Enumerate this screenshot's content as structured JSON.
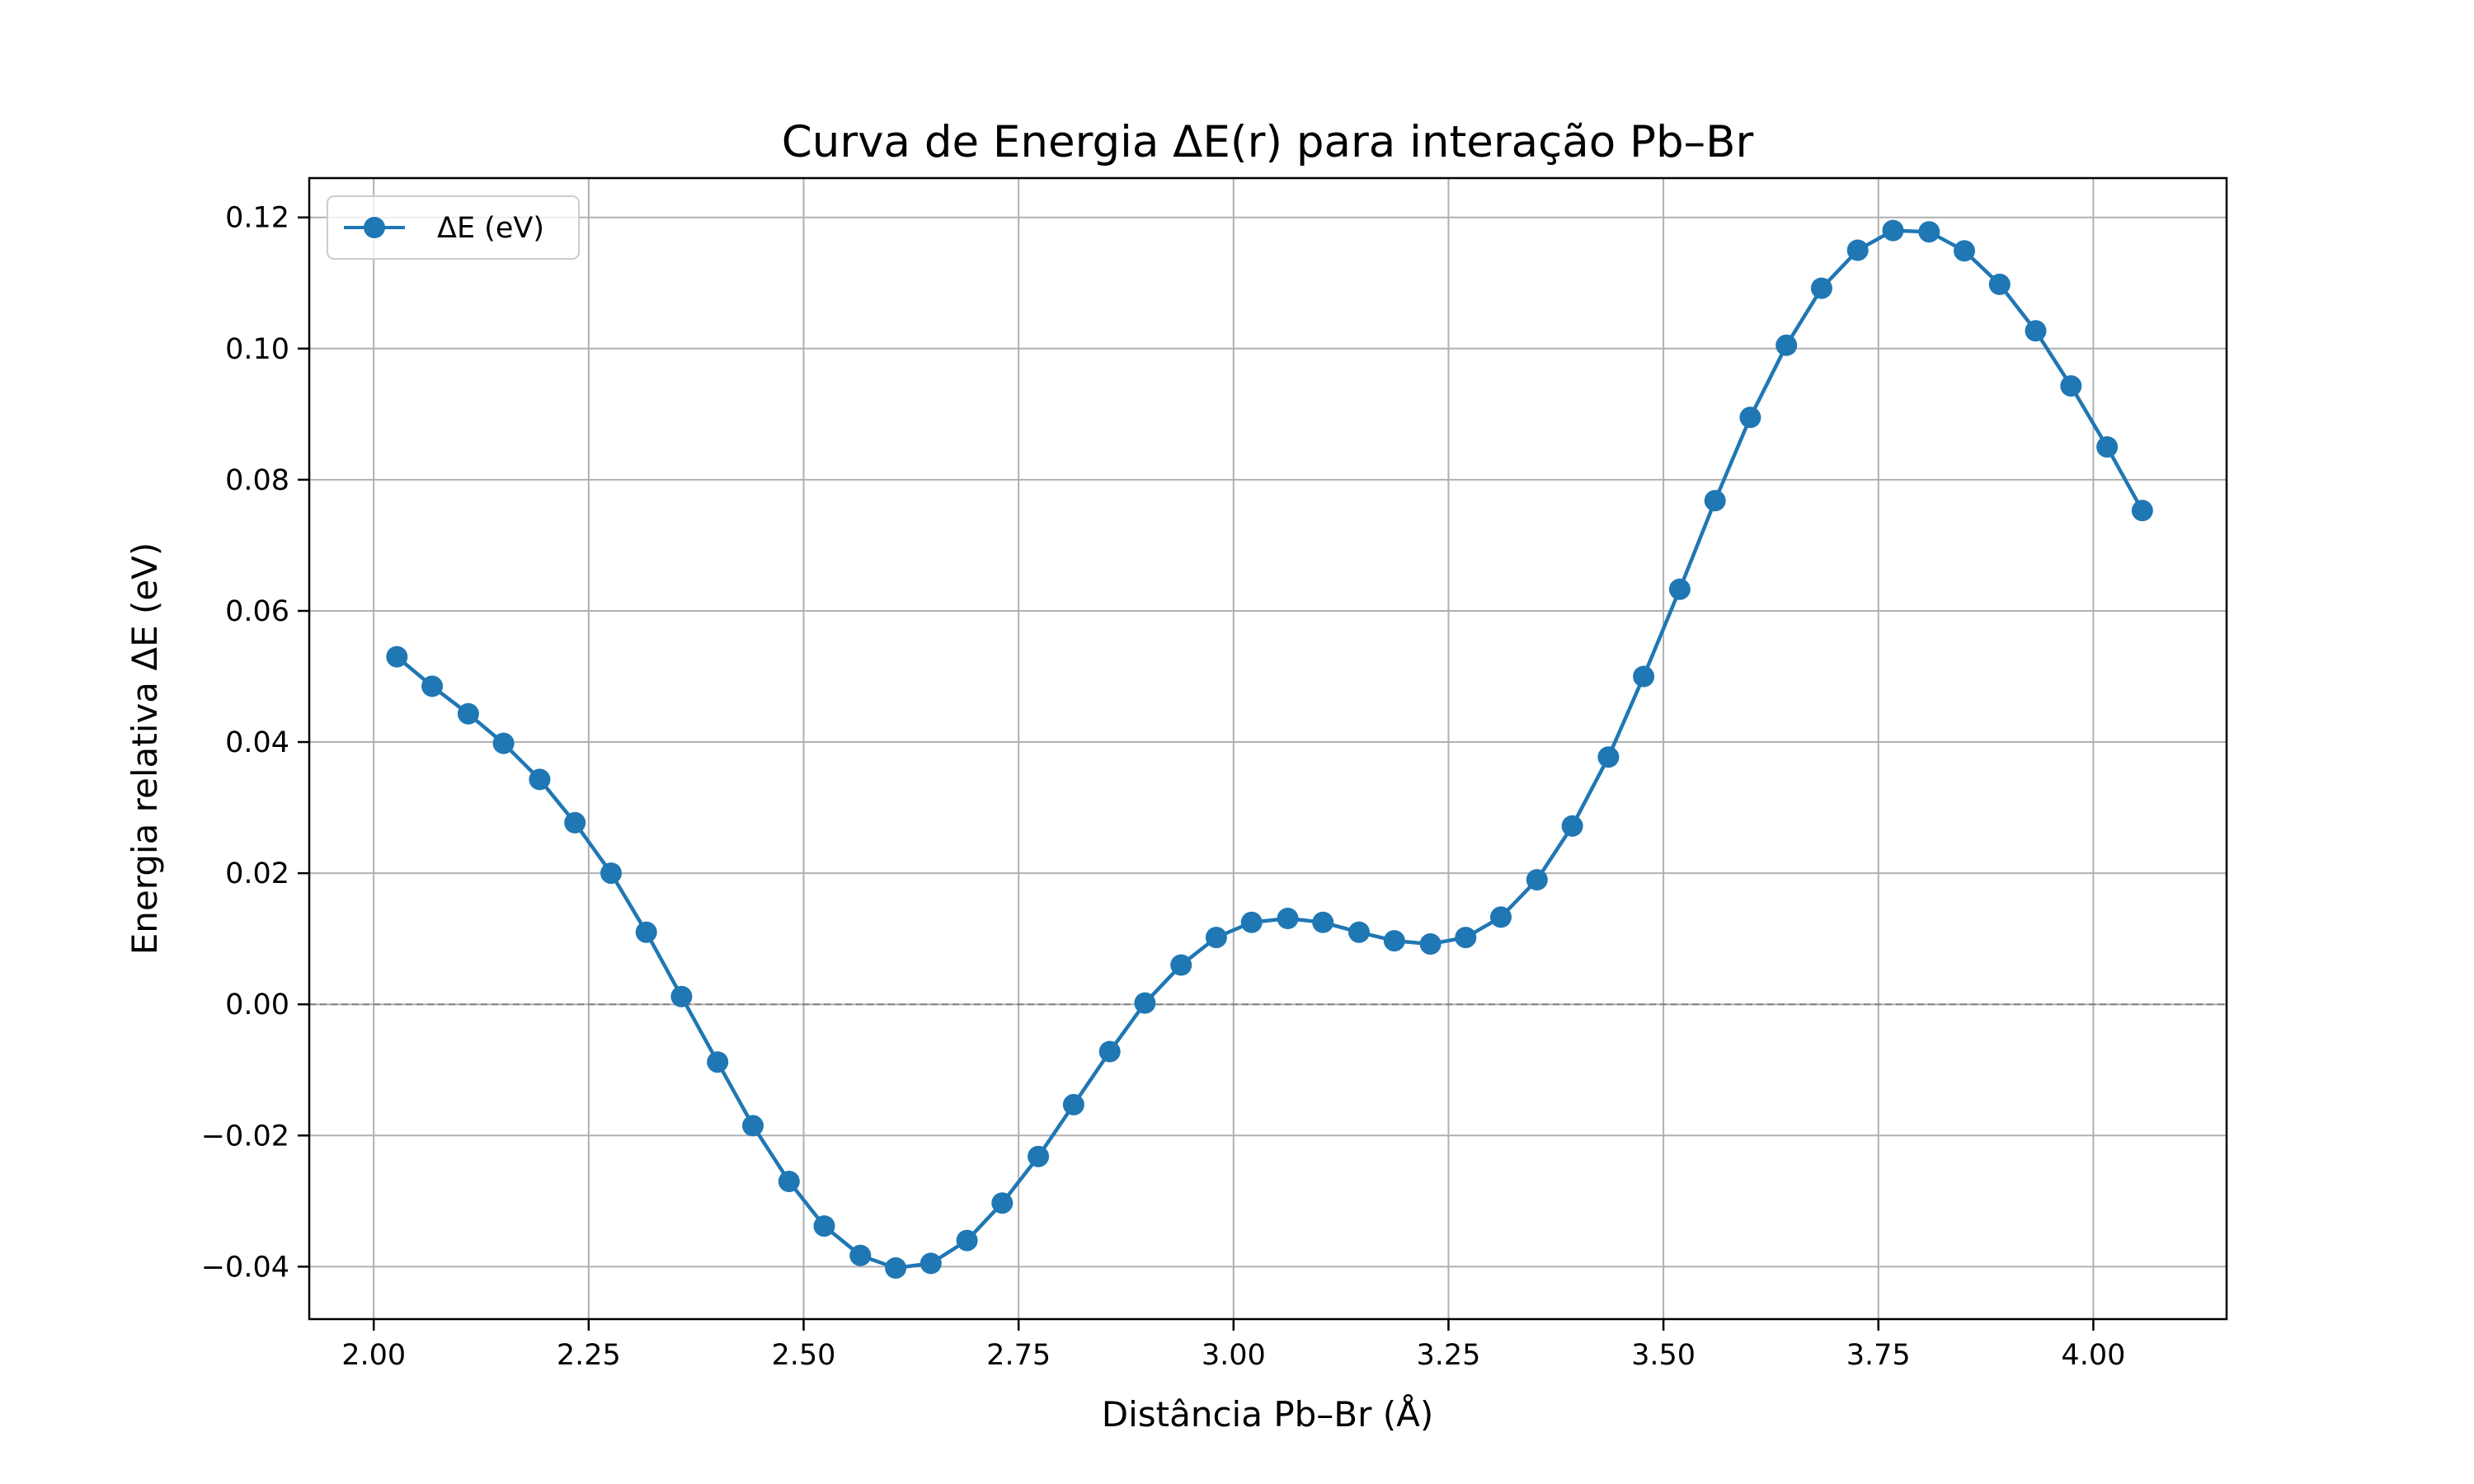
{
  "chart_data": {
    "type": "line",
    "title": "Curva de Energia ΔE(r) para interação Pb–Br",
    "xlabel": "Distância Pb–Br (Å)",
    "ylabel": "Energia relativa ΔE (eV)",
    "xlim": [
      1.925,
      4.155
    ],
    "ylim": [
      -0.048,
      0.126
    ],
    "xticks": [
      2.0,
      2.25,
      2.5,
      2.75,
      3.0,
      3.25,
      3.5,
      3.75,
      4.0
    ],
    "xtick_labels": [
      "2.00",
      "2.25",
      "2.50",
      "2.75",
      "3.00",
      "3.25",
      "3.50",
      "3.75",
      "4.00"
    ],
    "yticks": [
      -0.04,
      -0.02,
      0.0,
      0.02,
      0.04,
      0.06,
      0.08,
      0.1,
      0.12
    ],
    "ytick_labels": [
      "−0.04",
      "−0.02",
      "0.00",
      "0.02",
      "0.04",
      "0.06",
      "0.08",
      "0.10",
      "0.12"
    ],
    "grid": true,
    "legend_position": "top-left",
    "reference_line_y": 0.0,
    "series_color": "#1f77b4",
    "reference_color": "#808080",
    "series": [
      {
        "name": "ΔE (eV)",
        "marker": "circle",
        "x": [
          2.027,
          2.068,
          2.11,
          2.151,
          2.193,
          2.234,
          2.276,
          2.317,
          2.358,
          2.4,
          2.441,
          2.483,
          2.524,
          2.566,
          2.607,
          2.648,
          2.69,
          2.731,
          2.773,
          2.814,
          2.856,
          2.897,
          2.939,
          2.98,
          3.021,
          3.063,
          3.104,
          3.146,
          3.187,
          3.229,
          3.27,
          3.311,
          3.353,
          3.394,
          3.436,
          3.477,
          3.519,
          3.56,
          3.601,
          3.643,
          3.684,
          3.726,
          3.767,
          3.809,
          3.85,
          3.891,
          3.933,
          3.974,
          4.016,
          4.057
        ],
        "y": [
          0.053,
          0.0485,
          0.0443,
          0.0398,
          0.0343,
          0.0277,
          0.02,
          0.011,
          0.0012,
          -0.0088,
          -0.0185,
          -0.027,
          -0.0338,
          -0.0383,
          -0.0402,
          -0.0395,
          -0.036,
          -0.0303,
          -0.0232,
          -0.0153,
          -0.0072,
          0.0002,
          0.006,
          0.0102,
          0.0125,
          0.0131,
          0.0125,
          0.011,
          0.0097,
          0.0092,
          0.0102,
          0.0133,
          0.019,
          0.0272,
          0.0377,
          0.05,
          0.0633,
          0.0768,
          0.0895,
          0.1005,
          0.1092,
          0.115,
          0.118,
          0.1178,
          0.1149,
          0.1098,
          0.1027,
          0.0943,
          0.085,
          0.0753
        ]
      }
    ]
  }
}
